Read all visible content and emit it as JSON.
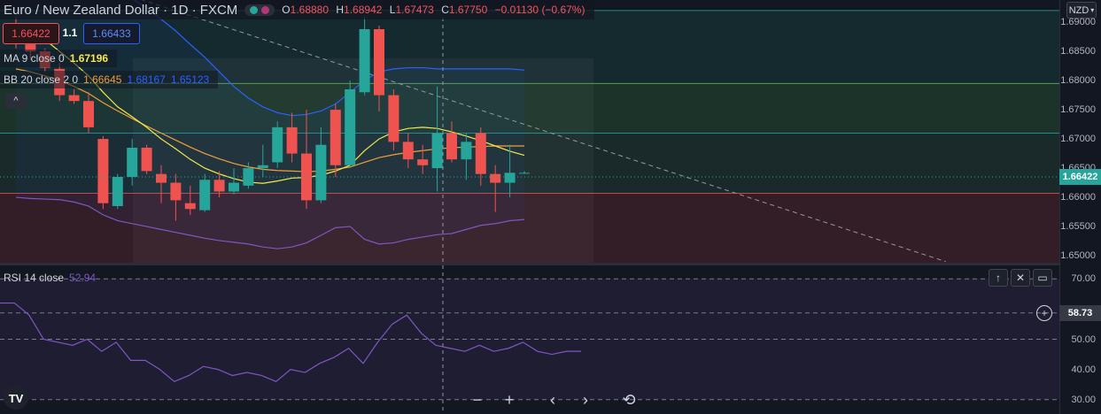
{
  "header": {
    "symbol": "Euro / New Zealand Dollar",
    "interval": "1D",
    "exchange": "FXCM",
    "open_label": "O",
    "open": "1.68880",
    "high_label": "H",
    "high": "1.68942",
    "low_label": "L",
    "low": "1.67473",
    "close_label": "C",
    "close": "1.67750",
    "change": "−0.01130 (−0.67%)"
  },
  "trade": {
    "sell_price": "1.66422",
    "spread": "1.1",
    "buy_price": "1.66433"
  },
  "indicators": {
    "ma_label": "MA 9 close 0",
    "ma_value": "1.67196",
    "bb_label": "BB 20 close 2 0",
    "bb_basis": "1.66645",
    "bb_upper": "1.68167",
    "bb_lower": "1.65123",
    "collapse_icon": "^"
  },
  "currency_button": "NZD",
  "price_axis": {
    "ticks": [
      "1.69000",
      "1.68500",
      "1.68000",
      "1.67500",
      "1.67000",
      "1.66500",
      "1.66000",
      "1.65500",
      "1.65000"
    ],
    "current_price": "1.66422"
  },
  "rsi": {
    "label": "RSI 14 close",
    "value": "52.94",
    "ticks": [
      "70.00",
      "50.00",
      "40.00",
      "30.00"
    ],
    "crosshair_value": "58.73"
  },
  "pane_buttons": {
    "up": "↑",
    "close": "✕",
    "maximize": "▭"
  },
  "navigation": {
    "zoom_out": "−",
    "zoom_in": "+",
    "left": "‹",
    "right": "›",
    "reset": "⟲"
  },
  "logo_text": "TV",
  "colors": {
    "up": "#26a69a",
    "down": "#ef5350",
    "ma": "#f5e94e",
    "bb_basis": "#f29f3b",
    "bb_band": "#2962ff",
    "rsi": "#7e57c2"
  },
  "chart_data": [
    {
      "type": "candlestick",
      "candles": [
        {
          "o": 1.6882,
          "h": 1.691,
          "l": 1.6855,
          "c": 1.6863
        },
        {
          "o": 1.6862,
          "h": 1.689,
          "l": 1.6835,
          "c": 1.685
        },
        {
          "o": 1.685,
          "h": 1.6855,
          "l": 1.6815,
          "c": 1.6822
        },
        {
          "o": 1.682,
          "h": 1.683,
          "l": 1.6765,
          "c": 1.6775
        },
        {
          "o": 1.6775,
          "h": 1.6785,
          "l": 1.676,
          "c": 1.6765
        },
        {
          "o": 1.6765,
          "h": 1.678,
          "l": 1.671,
          "c": 1.672
        },
        {
          "o": 1.67,
          "h": 1.6705,
          "l": 1.658,
          "c": 1.659
        },
        {
          "o": 1.6585,
          "h": 1.664,
          "l": 1.658,
          "c": 1.6635
        },
        {
          "o": 1.6635,
          "h": 1.67,
          "l": 1.662,
          "c": 1.6685
        },
        {
          "o": 1.6685,
          "h": 1.669,
          "l": 1.664,
          "c": 1.6645
        },
        {
          "o": 1.664,
          "h": 1.6655,
          "l": 1.659,
          "c": 1.6625
        },
        {
          "o": 1.6625,
          "h": 1.664,
          "l": 1.656,
          "c": 1.6595
        },
        {
          "o": 1.659,
          "h": 1.662,
          "l": 1.657,
          "c": 1.658
        },
        {
          "o": 1.6578,
          "h": 1.664,
          "l": 1.6575,
          "c": 1.663
        },
        {
          "o": 1.663,
          "h": 1.6645,
          "l": 1.66,
          "c": 1.661
        },
        {
          "o": 1.661,
          "h": 1.665,
          "l": 1.6605,
          "c": 1.6625
        },
        {
          "o": 1.662,
          "h": 1.666,
          "l": 1.6615,
          "c": 1.665
        },
        {
          "o": 1.665,
          "h": 1.669,
          "l": 1.6635,
          "c": 1.6655
        },
        {
          "o": 1.666,
          "h": 1.673,
          "l": 1.665,
          "c": 1.672
        },
        {
          "o": 1.672,
          "h": 1.6745,
          "l": 1.666,
          "c": 1.6675
        },
        {
          "o": 1.6675,
          "h": 1.675,
          "l": 1.658,
          "c": 1.6595
        },
        {
          "o": 1.6595,
          "h": 1.672,
          "l": 1.659,
          "c": 1.669
        },
        {
          "o": 1.675,
          "h": 1.676,
          "l": 1.6635,
          "c": 1.6655
        },
        {
          "o": 1.6655,
          "h": 1.68,
          "l": 1.665,
          "c": 1.6785
        },
        {
          "o": 1.678,
          "h": 1.691,
          "l": 1.6775,
          "c": 1.6888
        },
        {
          "o": 1.6888,
          "h": 1.6894,
          "l": 1.6747,
          "c": 1.6775
        },
        {
          "o": 1.6775,
          "h": 1.6785,
          "l": 1.668,
          "c": 1.6695
        },
        {
          "o": 1.6695,
          "h": 1.671,
          "l": 1.665,
          "c": 1.6665
        },
        {
          "o": 1.6665,
          "h": 1.669,
          "l": 1.664,
          "c": 1.6655
        },
        {
          "o": 1.665,
          "h": 1.679,
          "l": 1.661,
          "c": 1.671
        },
        {
          "o": 1.671,
          "h": 1.673,
          "l": 1.666,
          "c": 1.6665
        },
        {
          "o": 1.6665,
          "h": 1.671,
          "l": 1.663,
          "c": 1.6695
        },
        {
          "o": 1.671,
          "h": 1.672,
          "l": 1.662,
          "c": 1.664
        },
        {
          "o": 1.664,
          "h": 1.6655,
          "l": 1.6575,
          "c": 1.6625
        },
        {
          "o": 1.6625,
          "h": 1.669,
          "l": 1.66,
          "c": 1.6642
        },
        {
          "o": 1.6642,
          "h": 1.6645,
          "l": 1.664,
          "c": 1.6642
        }
      ],
      "ma9": [
        1.6895,
        1.6885,
        1.687,
        1.685,
        1.683,
        1.6808,
        1.678,
        1.6755,
        1.6738,
        1.672,
        1.67,
        1.6683,
        1.6665,
        1.665,
        1.664,
        1.6632,
        1.6626,
        1.6624,
        1.6628,
        1.6633,
        1.6634,
        1.6638,
        1.6645,
        1.6655,
        1.668,
        1.67,
        1.6712,
        1.6718,
        1.672,
        1.6718,
        1.6712,
        1.6705,
        1.6697,
        1.6688,
        1.6679,
        1.6672
      ],
      "bb_basis": [
        1.682,
        1.6815,
        1.6808,
        1.68,
        1.679,
        1.6778,
        1.6762,
        1.6748,
        1.6735,
        1.6722,
        1.671,
        1.6698,
        1.6686,
        1.6675,
        1.6666,
        1.6658,
        1.6652,
        1.6648,
        1.6646,
        1.6645,
        1.6644,
        1.6645,
        1.6648,
        1.6652,
        1.666,
        1.6668,
        1.6673,
        1.6677,
        1.668,
        1.6683,
        1.6685,
        1.6686,
        1.6687,
        1.6688,
        1.6688,
        1.6688
      ],
      "bb_upper_pts": [
        1.6965,
        1.6968,
        1.6972,
        1.6975,
        1.6975,
        1.6972,
        1.6965,
        1.6955,
        1.694,
        1.6925,
        1.6905,
        1.6885,
        1.6862,
        1.684,
        1.6815,
        1.679,
        1.677,
        1.6755,
        1.6745,
        1.674,
        1.6742,
        1.6748,
        1.676,
        1.678,
        1.68,
        1.6815,
        1.682,
        1.6822,
        1.6822,
        1.682,
        1.682,
        1.682,
        1.682,
        1.682,
        1.682,
        1.6818
      ],
      "bb_lower_pts": [
        1.66,
        1.6598,
        1.6597,
        1.6596,
        1.6592,
        1.6585,
        1.657,
        1.656,
        1.6555,
        1.655,
        1.6545,
        1.654,
        1.6535,
        1.653,
        1.6526,
        1.6523,
        1.652,
        1.6515,
        1.6512,
        1.6515,
        1.6522,
        1.6535,
        1.6548,
        1.655,
        1.6528,
        1.652,
        1.6522,
        1.6528,
        1.6532,
        1.6536,
        1.6538,
        1.6545,
        1.6552,
        1.6555,
        1.656,
        1.6562
      ],
      "horizontal_levels": [
        1.692,
        1.6795,
        1.671,
        1.6607
      ],
      "trendline": {
        "from": [
          6,
          1.696
        ],
        "to": [
          64,
          1.649
        ]
      },
      "y_range": [
        1.6488,
        1.6938
      ]
    },
    {
      "type": "line",
      "name": "RSI",
      "values": [
        62,
        62,
        58,
        50,
        49,
        48,
        50,
        46,
        49,
        43,
        43,
        40,
        36,
        38,
        41,
        40,
        38,
        39,
        38,
        36,
        40,
        39,
        42,
        44,
        47,
        42,
        49,
        55,
        58,
        52,
        48,
        47,
        46,
        48,
        46,
        47,
        49,
        46,
        45,
        46,
        46
      ],
      "levels": [
        70,
        58.73,
        50,
        30
      ],
      "y_range": [
        27,
        73
      ]
    }
  ]
}
